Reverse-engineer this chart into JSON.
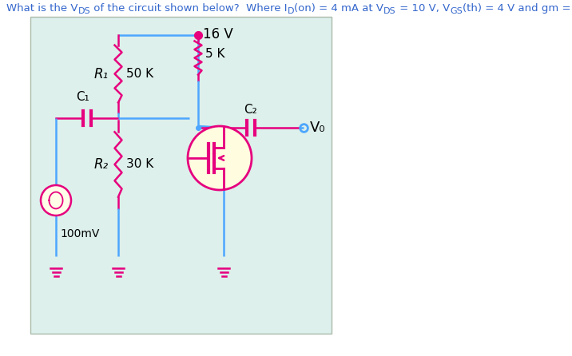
{
  "bg_color": "#ddf0eb",
  "line_color": "#4da6ff",
  "comp_color": "#e6007e",
  "text_color": "#000000",
  "fig_width": 7.16,
  "fig_height": 4.46,
  "vdd_label": "16 V",
  "rd_label": "5 K",
  "r1_label": "R₁",
  "r1_val": "50 K",
  "r2_label": "R₂",
  "r2_val": "30 K",
  "c1_label": "C₁",
  "c2_label": "C₂",
  "vo_label": "V₀",
  "vin_label": "100mV",
  "title_color": "#3366cc"
}
